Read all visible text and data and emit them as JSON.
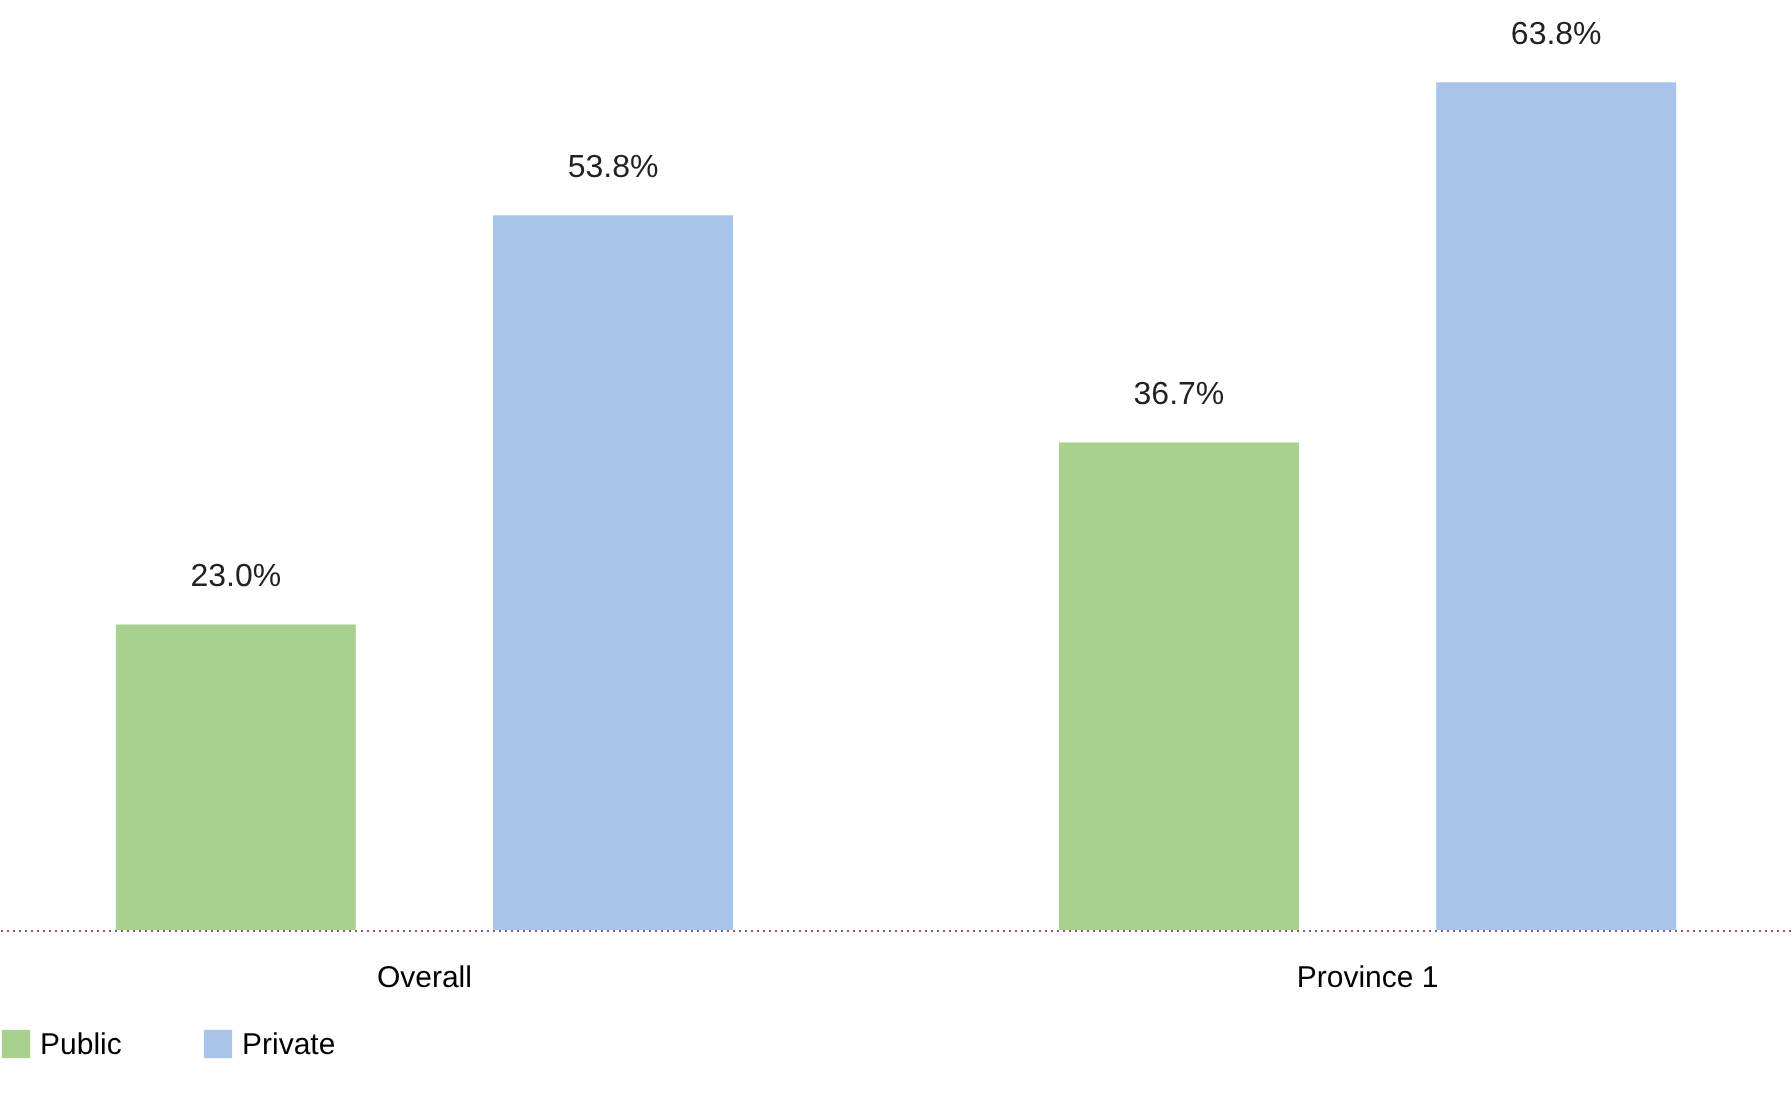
{
  "chart_data": {
    "type": "bar",
    "categories": [
      "Overall",
      "Province 1"
    ],
    "series": [
      {
        "name": "Public",
        "color": "#a9d18e",
        "values": [
          23.0,
          36.7
        ],
        "value_labels": [
          "23.0%",
          "36.7%"
        ]
      },
      {
        "name": "Private",
        "color": "#a9c4ea",
        "values": [
          53.8,
          63.8
        ],
        "value_labels": [
          "53.8%",
          "63.8%"
        ]
      }
    ],
    "ylim": [
      0,
      70
    ],
    "grid": false,
    "legend": "bottom",
    "tick_labels": "x"
  }
}
